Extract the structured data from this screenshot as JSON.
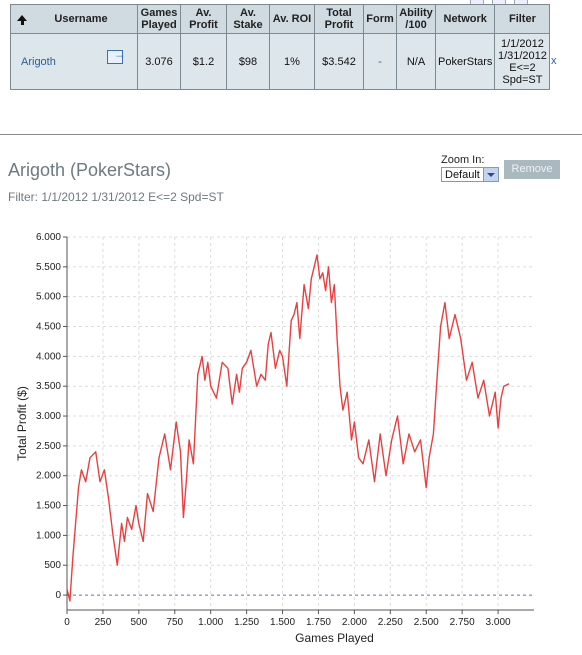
{
  "table": {
    "headers": [
      "Username",
      "Games Played",
      "Av. Profit",
      "Av. Stake",
      "Av. ROI",
      "Total Profit",
      "Form",
      "Ability /100",
      "Network",
      "Filter"
    ],
    "row": {
      "username": "Arigoth",
      "games_played": "3.076",
      "av_profit": "$1.2",
      "av_stake": "$98",
      "av_roi": "1%",
      "total_profit": "$3.542",
      "form": "-",
      "ability": "N/A",
      "network": "PokerStars",
      "filter_lines": [
        "1/1/2012",
        "1/31/2012",
        "E<=2",
        "Spd=ST"
      ]
    },
    "close_label": "x"
  },
  "detail": {
    "title": "Arigoth (PokerStars)",
    "filter": "Filter: 1/1/2012 1/31/2012 E<=2 Spd=ST"
  },
  "zoom": {
    "label": "Zoom In:",
    "value": "Default"
  },
  "remove_label": "Remove",
  "chart_data": {
    "type": "line",
    "xlabel": "Games Played",
    "ylabel": "Total Profit ($)",
    "xlim": [
      0,
      3250
    ],
    "ylim": [
      -250,
      6000
    ],
    "x_ticks": [
      0,
      250,
      500,
      750,
      1000,
      1250,
      1500,
      1750,
      2000,
      2250,
      2500,
      2750,
      3000
    ],
    "x_tick_labels": [
      "0",
      "250",
      "500",
      "750",
      "1.000",
      "1.250",
      "1.500",
      "1.750",
      "2.000",
      "2.250",
      "2.500",
      "2.750",
      "3.000"
    ],
    "y_ticks": [
      0,
      500,
      1000,
      1500,
      2000,
      2500,
      3000,
      3500,
      4000,
      4500,
      5000,
      5500,
      6000
    ],
    "y_tick_labels": [
      "0",
      "500",
      "1.000",
      "1.500",
      "2.000",
      "2.500",
      "3.000",
      "3.500",
      "4.000",
      "4.500",
      "5.000",
      "5.500",
      "6.000"
    ],
    "grid": true,
    "color": "#e84040",
    "series": [
      {
        "x": [
          0,
          20,
          40,
          60,
          80,
          100,
          130,
          160,
          200,
          230,
          260,
          290,
          320,
          350,
          380,
          400,
          420,
          450,
          480,
          500,
          530,
          560,
          600,
          640,
          680,
          720,
          760,
          790,
          810,
          830,
          850,
          880,
          910,
          940,
          960,
          980,
          1000,
          1040,
          1080,
          1120,
          1150,
          1180,
          1200,
          1220,
          1250,
          1280,
          1320,
          1350,
          1380,
          1400,
          1420,
          1450,
          1480,
          1500,
          1530,
          1560,
          1580,
          1600,
          1620,
          1650,
          1680,
          1700,
          1720,
          1740,
          1760,
          1780,
          1800,
          1820,
          1840,
          1860,
          1880,
          1900,
          1920,
          1950,
          1980,
          2000,
          2030,
          2060,
          2100,
          2140,
          2180,
          2220,
          2260,
          2300,
          2340,
          2380,
          2420,
          2460,
          2500,
          2520,
          2550,
          2580,
          2600,
          2630,
          2660,
          2700,
          2740,
          2780,
          2820,
          2860,
          2900,
          2940,
          2980,
          3000,
          3020,
          3040,
          3076
        ],
        "y": [
          100,
          -100,
          600,
          1200,
          1800,
          2100,
          1900,
          2300,
          2400,
          1900,
          2100,
          1600,
          1000,
          500,
          1200,
          900,
          1300,
          1100,
          1500,
          1200,
          900,
          1700,
          1400,
          2300,
          2700,
          2100,
          2900,
          2400,
          1300,
          1900,
          2600,
          2200,
          3700,
          4000,
          3600,
          3900,
          3500,
          3300,
          3900,
          3800,
          3200,
          3700,
          3400,
          3800,
          3900,
          4100,
          3500,
          3700,
          3600,
          4200,
          4400,
          3800,
          4100,
          4000,
          3500,
          4600,
          4700,
          4900,
          4300,
          5200,
          4800,
          5300,
          5500,
          5700,
          5300,
          5400,
          5100,
          5500,
          4900,
          5200,
          4300,
          3500,
          3100,
          3400,
          2600,
          2900,
          2300,
          2200,
          2600,
          1900,
          2700,
          2000,
          2600,
          3000,
          2200,
          2700,
          2400,
          2600,
          1800,
          2300,
          2700,
          3800,
          4500,
          4900,
          4300,
          4700,
          4300,
          3600,
          3900,
          3300,
          3600,
          3000,
          3400,
          2800,
          3300,
          3500,
          3542
        ]
      }
    ]
  }
}
